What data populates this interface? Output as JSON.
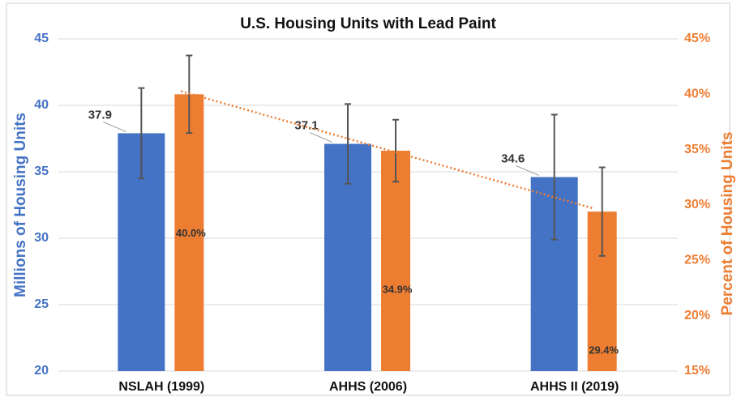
{
  "chart_data": {
    "type": "bar",
    "title": "U.S. Housing Units with Lead Paint",
    "categories": [
      "NSLAH (1999)",
      "AHHS (2006)",
      "AHHS II (2019)"
    ],
    "y_label": "Millions of Housing Units",
    "y2_label": "Percent of Housing Units",
    "ylim": [
      20,
      45
    ],
    "yticks": [
      20,
      25,
      30,
      35,
      40,
      45
    ],
    "y2lim": [
      15,
      45
    ],
    "y2ticks": [
      {
        "value": 15,
        "label": "15%"
      },
      {
        "value": 20,
        "label": "20%"
      },
      {
        "value": 25,
        "label": "25%"
      },
      {
        "value": 30,
        "label": "30%"
      },
      {
        "value": 35,
        "label": "35%"
      },
      {
        "value": 40,
        "label": "40%"
      },
      {
        "value": 45,
        "label": "45%"
      }
    ],
    "grid": true,
    "series": [
      {
        "name": "Millions of Housing Units",
        "color": "#4472c4",
        "values": [
          37.9,
          37.1,
          34.6
        ],
        "errors": [
          3.4,
          3.0,
          4.7
        ]
      },
      {
        "name": "Percent of Housing Units",
        "color": "#ed7d31",
        "axis": "y2",
        "values": [
          40.0,
          34.9,
          29.4
        ],
        "value_labels": [
          "40.0%",
          "34.9%",
          "29.4%"
        ],
        "errors": [
          3.5,
          2.8,
          4.0
        ],
        "trendline": true
      }
    ]
  }
}
